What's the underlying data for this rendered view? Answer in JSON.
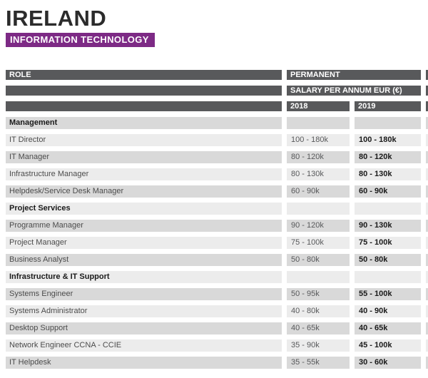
{
  "header": {
    "title": "IRELAND",
    "category": "INFORMATION TECHNOLOGY"
  },
  "colors": {
    "accent_purple": "#7d2a85",
    "header_bar_gray": "#58595b",
    "row_shade_dark": "#d9d9d9",
    "row_shade_light": "#ececec"
  },
  "table": {
    "columns": {
      "role": "ROLE",
      "group": "PERMANENT",
      "subgroup": "SALARY PER ANNUM EUR (€)",
      "years": [
        "2018",
        "2019"
      ]
    },
    "rows": [
      {
        "role": "Management",
        "section": true,
        "y2018": "",
        "y2019": ""
      },
      {
        "role": "IT Director",
        "section": false,
        "y2018": "100 - 180k",
        "y2019": "100 - 180k"
      },
      {
        "role": "IT Manager",
        "section": false,
        "y2018": "80 - 120k",
        "y2019": "80 - 120k"
      },
      {
        "role": "Infrastructure Manager",
        "section": false,
        "y2018": "80 - 130k",
        "y2019": "80 - 130k"
      },
      {
        "role": "Helpdesk/Service Desk Manager",
        "section": false,
        "y2018": "60 - 90k",
        "y2019": "60 - 90k"
      },
      {
        "role": "Project Services",
        "section": true,
        "y2018": "",
        "y2019": ""
      },
      {
        "role": "Programme Manager",
        "section": false,
        "y2018": "90 - 120k",
        "y2019": "90 - 130k"
      },
      {
        "role": "Project Manager",
        "section": false,
        "y2018": "75 - 100k",
        "y2019": "75 - 100k"
      },
      {
        "role": "Business Analyst",
        "section": false,
        "y2018": "50 - 80k",
        "y2019": "50 - 80k"
      },
      {
        "role": "Infrastructure & IT Support",
        "section": true,
        "y2018": "",
        "y2019": ""
      },
      {
        "role": "Systems Engineer",
        "section": false,
        "y2018": "50 - 95k",
        "y2019": "55 - 100k"
      },
      {
        "role": "Systems Administrator",
        "section": false,
        "y2018": "40 - 80k",
        "y2019": "40 - 90k"
      },
      {
        "role": "Desktop Support",
        "section": false,
        "y2018": "40 - 65k",
        "y2019": "40 - 65k"
      },
      {
        "role": "Network Engineer CCNA - CCIE",
        "section": false,
        "y2018": "35 - 90k",
        "y2019": "45 - 100k"
      },
      {
        "role": "IT Helpdesk",
        "section": false,
        "y2018": "35 - 55k",
        "y2019": "30 - 60k"
      }
    ]
  }
}
